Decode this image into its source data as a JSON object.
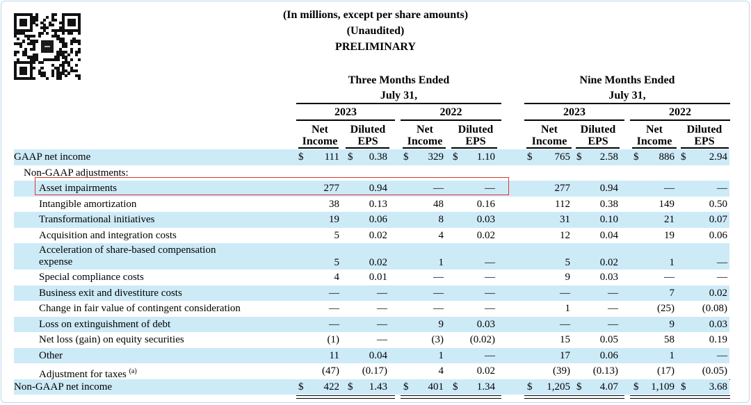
{
  "header": {
    "line1": "(In millions, except per share amounts)",
    "line2": "(Unaudited)",
    "line3": "PRELIMINARY"
  },
  "columns": {
    "three_months": "Three Months Ended",
    "nine_months": "Nine Months Ended",
    "date": "July 31,",
    "year_2023": "2023",
    "year_2022": "2022",
    "net_income": [
      "Net",
      "Income"
    ],
    "diluted_eps": [
      "Diluted",
      "EPS"
    ]
  },
  "dollar_sign": "$",
  "rows": [
    {
      "label": "GAAP net income",
      "shade": true,
      "dollar": true,
      "indent": 0,
      "values": [
        "111",
        "0.38",
        "329",
        "1.10",
        "765",
        "2.58",
        "886",
        "2.94"
      ]
    },
    {
      "label": "Non-GAAP adjustments:",
      "shade": false,
      "indent": 1,
      "values": [
        "",
        "",
        "",
        "",
        "",
        "",
        "",
        ""
      ]
    },
    {
      "label": "Asset impairments",
      "shade": true,
      "indent": 2,
      "values": [
        "277",
        "0.94",
        "—",
        "—",
        "277",
        "0.94",
        "—",
        "—"
      ]
    },
    {
      "label": "Intangible amortization",
      "shade": false,
      "indent": 2,
      "values": [
        "38",
        "0.13",
        "48",
        "0.16",
        "112",
        "0.38",
        "149",
        "0.50"
      ]
    },
    {
      "label": "Transformational initiatives",
      "shade": true,
      "indent": 2,
      "values": [
        "19",
        "0.06",
        "8",
        "0.03",
        "31",
        "0.10",
        "21",
        "0.07"
      ]
    },
    {
      "label": "Acquisition and integration costs",
      "shade": false,
      "indent": 2,
      "values": [
        "5",
        "0.02",
        "4",
        "0.02",
        "12",
        "0.04",
        "19",
        "0.06"
      ]
    },
    {
      "label": "Acceleration of share-based compensation",
      "label2": "expense",
      "shade": true,
      "indent": 2,
      "tall": true,
      "values": [
        "5",
        "0.02",
        "1",
        "—",
        "5",
        "0.02",
        "1",
        "—"
      ]
    },
    {
      "label": "Special compliance costs",
      "shade": false,
      "indent": 2,
      "values": [
        "4",
        "0.01",
        "—",
        "—",
        "9",
        "0.03",
        "—",
        "—"
      ]
    },
    {
      "label": "Business exit and divestiture costs",
      "shade": true,
      "indent": 2,
      "values": [
        "—",
        "—",
        "—",
        "—",
        "—",
        "—",
        "7",
        "0.02"
      ]
    },
    {
      "label": "Change in fair value of contingent consideration",
      "shade": false,
      "indent": 2,
      "values": [
        "—",
        "—",
        "—",
        "—",
        "1",
        "—",
        "(25)",
        "(0.08)"
      ]
    },
    {
      "label": "Loss on extinguishment of debt",
      "shade": true,
      "indent": 2,
      "values": [
        "—",
        "—",
        "9",
        "0.03",
        "—",
        "—",
        "9",
        "0.03"
      ]
    },
    {
      "label": "Net loss (gain) on equity securities",
      "shade": false,
      "indent": 2,
      "values": [
        "(1)",
        "—",
        "(3)",
        "(0.02)",
        "15",
        "0.05",
        "58",
        "0.19"
      ]
    },
    {
      "label": "Other",
      "shade": true,
      "indent": 2,
      "values": [
        "11",
        "0.04",
        "1",
        "—",
        "17",
        "0.06",
        "1",
        "—"
      ]
    },
    {
      "label": "Adjustment for taxes",
      "sup": "(a)",
      "shade": false,
      "indent": 2,
      "underline": true,
      "values": [
        "(47)",
        "(0.17)",
        "4",
        "0.02",
        "(39)",
        "(0.13)",
        "(17)",
        "(0.05)"
      ]
    },
    {
      "label": "Non-GAAP net income",
      "shade": true,
      "dollar": true,
      "indent": 0,
      "total": true,
      "values": [
        "422",
        "1.43",
        "401",
        "1.34",
        "1,205",
        "4.07",
        "1,109",
        "3.68"
      ]
    }
  ]
}
